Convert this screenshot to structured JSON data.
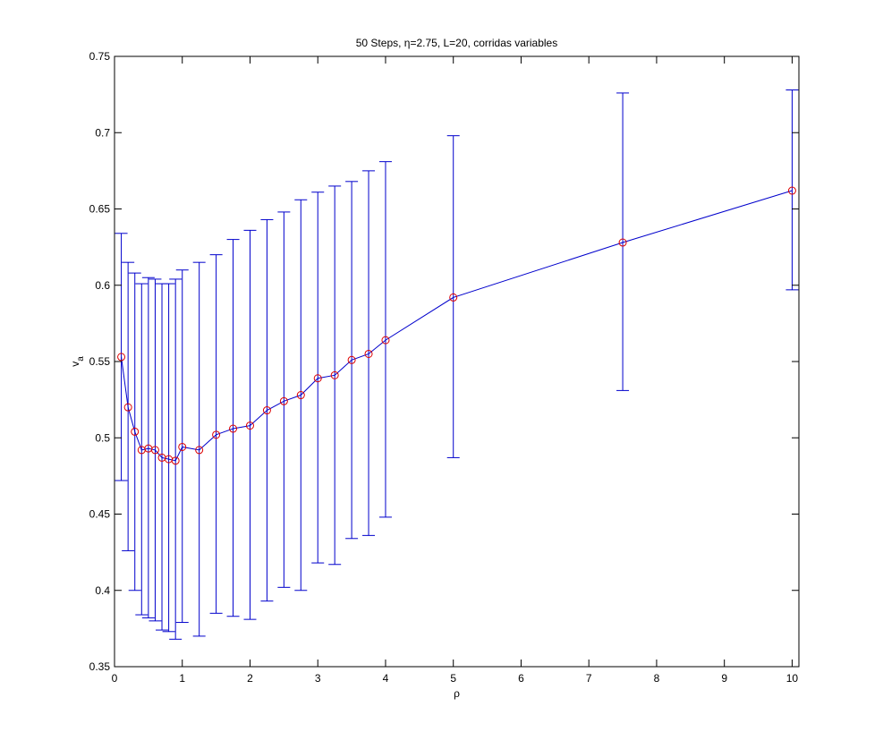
{
  "chart_data": {
    "type": "line",
    "title": "50 Steps, η=2.75, L=20, corridas variables",
    "xlabel": "ρ",
    "ylabel": "v",
    "ylabel_subscript": "a",
    "xlim": [
      0,
      10.1
    ],
    "ylim": [
      0.35,
      0.75
    ],
    "x_ticks": [
      0,
      1,
      2,
      3,
      4,
      5,
      6,
      7,
      8,
      9,
      10
    ],
    "y_ticks": [
      0.35,
      0.4,
      0.45,
      0.5,
      0.55,
      0.6,
      0.65,
      0.7,
      0.75
    ],
    "x_tick_labels": [
      "0",
      "1",
      "2",
      "3",
      "4",
      "5",
      "6",
      "7",
      "8",
      "9",
      "10"
    ],
    "y_tick_labels": [
      "0.35",
      "0.4",
      "0.45",
      "0.5",
      "0.55",
      "0.6",
      "0.65",
      "0.7",
      "0.75"
    ],
    "grid": false,
    "series": [
      {
        "line_color": "#0000cc",
        "marker": "circle",
        "marker_color": "#dd0000",
        "errorbar_color": "#0000cc",
        "x": [
          0.1,
          0.2,
          0.3,
          0.4,
          0.5,
          0.6,
          0.7,
          0.8,
          0.9,
          1.0,
          1.25,
          1.5,
          1.75,
          2.0,
          2.25,
          2.5,
          2.75,
          3.0,
          3.25,
          3.5,
          3.75,
          4.0,
          5.0,
          7.5,
          10.0
        ],
        "y": [
          0.553,
          0.52,
          0.504,
          0.492,
          0.493,
          0.492,
          0.487,
          0.486,
          0.485,
          0.494,
          0.492,
          0.502,
          0.506,
          0.508,
          0.518,
          0.524,
          0.528,
          0.539,
          0.541,
          0.551,
          0.555,
          0.564,
          0.592,
          0.628,
          0.662
        ],
        "lower": [
          0.472,
          0.426,
          0.4,
          0.384,
          0.382,
          0.38,
          0.374,
          0.373,
          0.368,
          0.379,
          0.37,
          0.385,
          0.383,
          0.381,
          0.393,
          0.402,
          0.4,
          0.418,
          0.417,
          0.434,
          0.436,
          0.448,
          0.487,
          0.531,
          0.597
        ],
        "upper": [
          0.634,
          0.615,
          0.608,
          0.601,
          0.605,
          0.604,
          0.601,
          0.601,
          0.604,
          0.61,
          0.615,
          0.62,
          0.63,
          0.636,
          0.643,
          0.648,
          0.656,
          0.661,
          0.665,
          0.668,
          0.675,
          0.681,
          0.698,
          0.726,
          0.728
        ]
      }
    ]
  }
}
